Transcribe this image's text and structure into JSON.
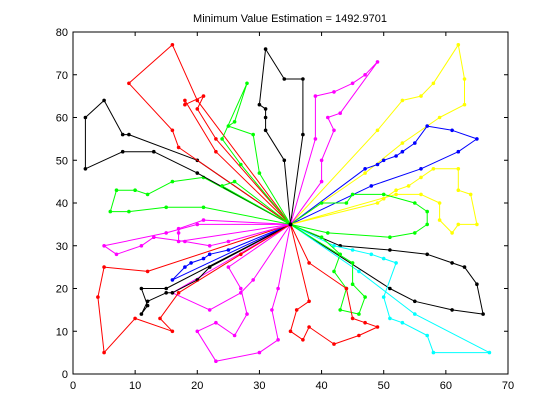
{
  "chart_data": {
    "type": "line",
    "title": "Minimum Value Estimation = 1492.9701",
    "xlabel": "",
    "ylabel": "",
    "xlim": [
      0,
      70
    ],
    "ylim": [
      0,
      80
    ],
    "x_ticks": [
      0,
      10,
      20,
      30,
      40,
      50,
      60,
      70
    ],
    "y_ticks": [
      0,
      10,
      20,
      30,
      40,
      50,
      60,
      70,
      80
    ],
    "x_tick_labels": [
      "0",
      "10",
      "20",
      "30",
      "40",
      "50",
      "60",
      "70"
    ],
    "y_tick_labels": [
      "0",
      "10",
      "20",
      "30",
      "40",
      "50",
      "60",
      "70",
      "80"
    ],
    "grid": false,
    "legend": "none",
    "depot": [
      35,
      35
    ],
    "routes": [
      {
        "color": "#ffff00",
        "points": [
          [
            35,
            35
          ],
          [
            49,
            57
          ],
          [
            53,
            64
          ],
          [
            56,
            65
          ],
          [
            58,
            68
          ],
          [
            62,
            77
          ],
          [
            63,
            69
          ],
          [
            63,
            63
          ],
          [
            59,
            60
          ],
          [
            53,
            54
          ],
          [
            47,
            47
          ],
          [
            35,
            35
          ]
        ]
      },
      {
        "color": "#0000ff",
        "points": [
          [
            35,
            35
          ],
          [
            47,
            48
          ],
          [
            49,
            49
          ],
          [
            50,
            50
          ],
          [
            52,
            51
          ],
          [
            53,
            52
          ],
          [
            55,
            54
          ],
          [
            57,
            58
          ],
          [
            61,
            57
          ],
          [
            65,
            55
          ],
          [
            62,
            52
          ],
          [
            56,
            48
          ],
          [
            48,
            44
          ],
          [
            35,
            35
          ]
        ]
      },
      {
        "color": "#ffff00",
        "points": [
          [
            35,
            35
          ],
          [
            49,
            40
          ],
          [
            50,
            41
          ],
          [
            52,
            43
          ],
          [
            54,
            44
          ],
          [
            56,
            46
          ],
          [
            58,
            48
          ],
          [
            62,
            48
          ],
          [
            62,
            43
          ],
          [
            64,
            42
          ],
          [
            65,
            35
          ],
          [
            62,
            35
          ],
          [
            61,
            33
          ],
          [
            59,
            36
          ],
          [
            59,
            40
          ],
          [
            56,
            42
          ],
          [
            52,
            42
          ],
          [
            35,
            35
          ]
        ]
      },
      {
        "color": "#00ff00",
        "points": [
          [
            35,
            35
          ],
          [
            41,
            33
          ],
          [
            51,
            32
          ],
          [
            55,
            33
          ],
          [
            57,
            35
          ],
          [
            57,
            38
          ],
          [
            55,
            40
          ],
          [
            50,
            42
          ],
          [
            45,
            42
          ],
          [
            44,
            40
          ],
          [
            40,
            40
          ],
          [
            35,
            35
          ]
        ]
      },
      {
        "color": "#000000",
        "points": [
          [
            35,
            35
          ],
          [
            43,
            30
          ],
          [
            51,
            29
          ],
          [
            57,
            28
          ],
          [
            61,
            26
          ],
          [
            63,
            25
          ],
          [
            65,
            21
          ],
          [
            66,
            14
          ],
          [
            61,
            15
          ],
          [
            55,
            17
          ],
          [
            51,
            20
          ],
          [
            35,
            35
          ]
        ]
      },
      {
        "color": "#00ffff",
        "points": [
          [
            35,
            35
          ],
          [
            42,
            30
          ],
          [
            45,
            29
          ],
          [
            48,
            28
          ],
          [
            50,
            27
          ],
          [
            52,
            26
          ],
          [
            50,
            18
          ],
          [
            51,
            13
          ],
          [
            53,
            12
          ],
          [
            57,
            9
          ],
          [
            58,
            5
          ],
          [
            67,
            5
          ],
          [
            55,
            14
          ],
          [
            46,
            24
          ],
          [
            35,
            35
          ]
        ]
      },
      {
        "color": "#00ff00",
        "points": [
          [
            35,
            35
          ],
          [
            40,
            32
          ],
          [
            43,
            28
          ],
          [
            42,
            24
          ],
          [
            44,
            20
          ],
          [
            43,
            15
          ],
          [
            46,
            14
          ],
          [
            47,
            18
          ],
          [
            45,
            21
          ],
          [
            45,
            26
          ],
          [
            35,
            35
          ]
        ]
      },
      {
        "color": "#ff0000",
        "points": [
          [
            35,
            35
          ],
          [
            38,
            26
          ],
          [
            44,
            20
          ],
          [
            45,
            13
          ],
          [
            47,
            12
          ],
          [
            49,
            11
          ],
          [
            46,
            9
          ],
          [
            42,
            7
          ],
          [
            38,
            11
          ],
          [
            37,
            8
          ],
          [
            35,
            10
          ],
          [
            36,
            15
          ],
          [
            38,
            17
          ],
          [
            35,
            35
          ]
        ]
      },
      {
        "color": "#ff00ff",
        "points": [
          [
            35,
            35
          ],
          [
            33,
            20
          ],
          [
            32,
            15
          ],
          [
            33,
            8
          ],
          [
            30,
            5
          ],
          [
            23,
            3
          ],
          [
            20,
            10
          ],
          [
            23,
            12
          ],
          [
            26,
            9
          ],
          [
            28,
            14
          ],
          [
            27,
            20
          ],
          [
            25,
            25
          ],
          [
            35,
            35
          ]
        ]
      },
      {
        "color": "#ff00ff",
        "points": [
          [
            35,
            35
          ],
          [
            29,
            22
          ],
          [
            27,
            19
          ],
          [
            22,
            15
          ],
          [
            16,
            19
          ],
          [
            35,
            35
          ]
        ]
      },
      {
        "color": "#0000ff",
        "points": [
          [
            35,
            35
          ],
          [
            25,
            29
          ],
          [
            22,
            28
          ],
          [
            21,
            27
          ],
          [
            19,
            26
          ],
          [
            18,
            25
          ],
          [
            16,
            22
          ],
          [
            35,
            35
          ]
        ]
      },
      {
        "color": "#000000",
        "points": [
          [
            35,
            35
          ],
          [
            22,
            25
          ],
          [
            20,
            22
          ],
          [
            16,
            19
          ],
          [
            15,
            19
          ],
          [
            12,
            17
          ],
          [
            11,
            14
          ],
          [
            12,
            16
          ],
          [
            11,
            20
          ],
          [
            15,
            20
          ],
          [
            35,
            35
          ]
        ]
      },
      {
        "color": "#ff0000",
        "points": [
          [
            35,
            35
          ],
          [
            27,
            28
          ],
          [
            17,
            19
          ],
          [
            14,
            13
          ],
          [
            16,
            10
          ],
          [
            10,
            13
          ],
          [
            5,
            5
          ],
          [
            4,
            18
          ],
          [
            5,
            25
          ],
          [
            12,
            24
          ],
          [
            35,
            35
          ]
        ]
      },
      {
        "color": "#ff00ff",
        "points": [
          [
            35,
            35
          ],
          [
            25,
            31
          ],
          [
            22,
            30
          ],
          [
            18,
            31
          ],
          [
            13,
            32
          ],
          [
            11,
            30
          ],
          [
            7,
            28
          ],
          [
            5,
            30
          ],
          [
            15,
            33
          ],
          [
            20,
            35
          ],
          [
            35,
            35
          ]
        ]
      },
      {
        "color": "#ff00ff",
        "points": [
          [
            35,
            35
          ],
          [
            21,
            36
          ],
          [
            17,
            34
          ],
          [
            17,
            33
          ],
          [
            17,
            31
          ],
          [
            35,
            35
          ]
        ]
      },
      {
        "color": "#00ff00",
        "points": [
          [
            35,
            35
          ],
          [
            21,
            39
          ],
          [
            15,
            39
          ],
          [
            9,
            38
          ],
          [
            6,
            38
          ],
          [
            7,
            43
          ],
          [
            10,
            43
          ],
          [
            12,
            42
          ],
          [
            16,
            45
          ],
          [
            21,
            46
          ],
          [
            35,
            35
          ]
        ]
      },
      {
        "color": "#000000",
        "points": [
          [
            35,
            35
          ],
          [
            20,
            47
          ],
          [
            13,
            52
          ],
          [
            8,
            52
          ],
          [
            2,
            48
          ],
          [
            2,
            60
          ],
          [
            5,
            64
          ],
          [
            8,
            56
          ],
          [
            9,
            56
          ],
          [
            20,
            50
          ],
          [
            35,
            35
          ]
        ]
      },
      {
        "color": "#ff0000",
        "points": [
          [
            35,
            35
          ],
          [
            23,
            52
          ],
          [
            18,
            64
          ],
          [
            18,
            63
          ],
          [
            21,
            65
          ],
          [
            20,
            62
          ],
          [
            23,
            55
          ],
          [
            35,
            35
          ]
        ]
      },
      {
        "color": "#ff0000",
        "points": [
          [
            35,
            35
          ],
          [
            17,
            53
          ],
          [
            16,
            57
          ],
          [
            9,
            68
          ],
          [
            16,
            77
          ],
          [
            20,
            64
          ],
          [
            35,
            35
          ]
        ]
      },
      {
        "color": "#00ff00",
        "points": [
          [
            35,
            35
          ],
          [
            27,
            49
          ],
          [
            24,
            55
          ],
          [
            28,
            68
          ],
          [
            26,
            59
          ],
          [
            25,
            58
          ],
          [
            29,
            56
          ],
          [
            30,
            47
          ],
          [
            35,
            35
          ]
        ]
      },
      {
        "color": "#00ff00",
        "points": [
          [
            35,
            35
          ],
          [
            26,
            45
          ],
          [
            24,
            44
          ],
          [
            35,
            35
          ]
        ]
      },
      {
        "color": "#000000",
        "points": [
          [
            35,
            35
          ],
          [
            34,
            50
          ],
          [
            31,
            57
          ],
          [
            31,
            60
          ],
          [
            31,
            62
          ],
          [
            30,
            63
          ],
          [
            31,
            76
          ],
          [
            34,
            69
          ],
          [
            37,
            69
          ],
          [
            37,
            56
          ],
          [
            35,
            35
          ]
        ]
      },
      {
        "color": "#ff00ff",
        "points": [
          [
            35,
            35
          ],
          [
            40,
            45
          ],
          [
            40,
            50
          ],
          [
            42,
            57
          ],
          [
            41,
            60
          ],
          [
            43,
            61
          ],
          [
            49,
            73
          ],
          [
            47,
            70
          ],
          [
            45,
            68
          ],
          [
            42,
            66
          ],
          [
            39,
            65
          ],
          [
            39,
            55
          ],
          [
            35,
            35
          ]
        ]
      }
    ]
  }
}
